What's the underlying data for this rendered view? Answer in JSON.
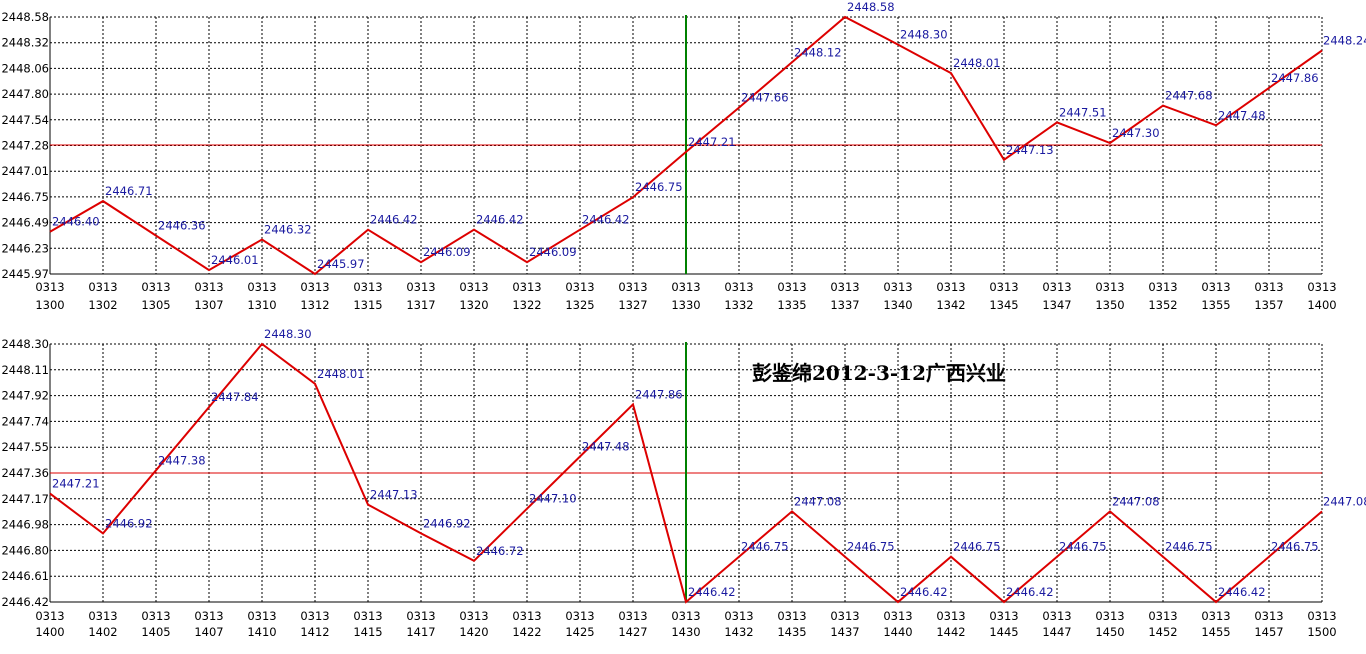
{
  "chart_data": [
    {
      "type": "line",
      "title": "",
      "x": [
        "0313 1300",
        "0313 1302",
        "0313 1305",
        "0313 1307",
        "0313 1310",
        "0313 1312",
        "0313 1315",
        "0313 1317",
        "0313 1320",
        "0313 1322",
        "0313 1325",
        "0313 1327",
        "0313 1330",
        "0313 1332",
        "0313 1335",
        "0313 1337",
        "0313 1340",
        "0313 1342",
        "0313 1345",
        "0313 1347",
        "0313 1350",
        "0313 1352",
        "0313 1355",
        "0313 1357",
        "0313 1400"
      ],
      "values": [
        2446.4,
        2446.71,
        2446.36,
        2446.01,
        2446.32,
        2445.97,
        2446.42,
        2446.09,
        2446.42,
        2446.09,
        2446.42,
        2446.75,
        2447.21,
        2447.66,
        2448.12,
        2448.58,
        2448.3,
        2448.01,
        2447.13,
        2447.51,
        2447.3,
        2447.68,
        2447.48,
        2447.86,
        2448.24
      ],
      "yticks": [
        "2445.97",
        "2446.23",
        "2446.49",
        "2446.75",
        "2447.01",
        "2447.28",
        "2447.54",
        "2447.80",
        "2448.06",
        "2448.32",
        "2448.58"
      ],
      "ylim": [
        2445.97,
        2448.58
      ],
      "ref_line": 2447.28,
      "vline_at": "0313 1330",
      "colors": {
        "line": "#dd0000",
        "ref": "#dd0000",
        "vline": "#008000",
        "labels": "#1a1aa0",
        "grid": "#000000"
      }
    },
    {
      "type": "line",
      "title": "彭鉴绵2012-3-12广西兴业",
      "x": [
        "0313 1400",
        "0313 1402",
        "0313 1405",
        "0313 1407",
        "0313 1410",
        "0313 1412",
        "0313 1415",
        "0313 1417",
        "0313 1420",
        "0313 1422",
        "0313 1425",
        "0313 1427",
        "0313 1430",
        "0313 1432",
        "0313 1435",
        "0313 1437",
        "0313 1440",
        "0313 1442",
        "0313 1445",
        "0313 1447",
        "0313 1450",
        "0313 1452",
        "0313 1455",
        "0313 1457",
        "0313 1500"
      ],
      "values": [
        2447.21,
        2446.92,
        2447.38,
        2447.84,
        2448.3,
        2448.01,
        2447.13,
        2446.92,
        2446.72,
        2447.1,
        2447.48,
        2447.86,
        2446.42,
        2446.75,
        2447.08,
        2446.75,
        2446.42,
        2446.75,
        2446.42,
        2446.75,
        2447.08,
        2446.75,
        2446.42,
        2446.75,
        2447.08
      ],
      "yticks": [
        "2446.42",
        "2446.61",
        "2446.80",
        "2446.98",
        "2447.17",
        "2447.36",
        "2447.55",
        "2447.74",
        "2447.92",
        "2448.11",
        "2448.30"
      ],
      "ylim": [
        2446.42,
        2448.3
      ],
      "ref_line": 2447.36,
      "vline_at": "0313 1430",
      "colors": {
        "line": "#dd0000",
        "ref": "#dd0000",
        "vline": "#008000",
        "labels": "#1a1aa0",
        "grid": "#000000"
      }
    }
  ]
}
